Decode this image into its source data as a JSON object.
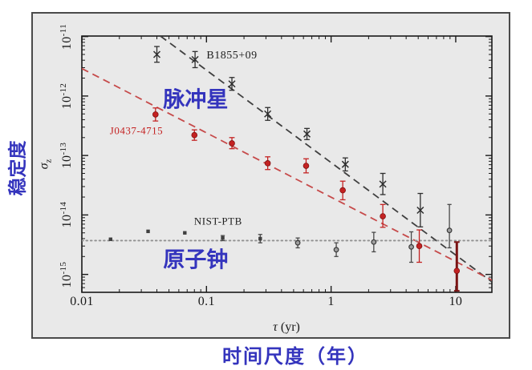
{
  "figure": {
    "outer_bg": "#ffffff",
    "panel_bg": "#e9e9e9",
    "panel_border": "#4a4a4a",
    "axis_color": "#1a1a1a",
    "blue_label_color": "#3434bd",
    "y_axis_title_cn": "稳定度",
    "x_axis_title_cn": "时间尺度（年）"
  },
  "chart_data": {
    "type": "scatter",
    "x_scale": "log",
    "y_scale": "log",
    "xlabel_sym": "τ",
    "xlabel_rest": " (yr)",
    "ylabel_sym": "σ",
    "ylabel_sub": "z",
    "xlim": [
      0.01,
      19.5
    ],
    "ylim": [
      5e-16,
      1.02e-11
    ],
    "grid": false,
    "legend": "none",
    "x_ticks": [
      {
        "label": "0.01",
        "v": 0.01
      },
      {
        "label": "0.1",
        "v": 0.1
      },
      {
        "label": "1",
        "v": 1
      },
      {
        "label": "10",
        "v": 10
      }
    ],
    "y_ticks": [
      {
        "base": "10",
        "exp": "-11",
        "v": 1e-11
      },
      {
        "base": "10",
        "exp": "-12",
        "v": 1e-12
      },
      {
        "base": "10",
        "exp": "-13",
        "v": 1e-13
      },
      {
        "base": "10",
        "exp": "-14",
        "v": 1e-14
      },
      {
        "base": "10",
        "exp": "-15",
        "v": 1e-15
      }
    ],
    "series": [
      {
        "id": "b1855",
        "name": "B1855+09",
        "kind": "pulsar",
        "color": "#2e2e2e",
        "line_color": "#3f3f3f",
        "line_style": "dashed",
        "marker": "x",
        "trend": [
          [
            0.0427,
            1.02e-11
          ],
          [
            19.5,
            7.5e-16
          ]
        ],
        "points": [
          {
            "t": 0.04,
            "s": 5e-12,
            "lo": 3.7e-12,
            "hi": 6.8e-12
          },
          {
            "t": 0.081,
            "s": 4.1e-12,
            "lo": 3e-12,
            "hi": 5.6e-12
          },
          {
            "t": 0.16,
            "s": 1.6e-12,
            "lo": 1.25e-12,
            "hi": 2.05e-12
          },
          {
            "t": 0.31,
            "s": 5e-13,
            "lo": 3.9e-13,
            "hi": 6.4e-13
          },
          {
            "t": 0.64,
            "s": 2.3e-13,
            "lo": 1.85e-13,
            "hi": 2.85e-13
          },
          {
            "t": 1.3,
            "s": 7.1e-14,
            "lo": 5.5e-14,
            "hi": 9.1e-14
          },
          {
            "t": 2.6,
            "s": 3.3e-14,
            "lo": 2.2e-14,
            "hi": 5e-14
          },
          {
            "t": 5.2,
            "s": 1.2e-14,
            "lo": 6.3e-15,
            "hi": 2.3e-14
          }
        ]
      },
      {
        "id": "j0437",
        "name": "J0437-4715",
        "kind": "pulsar",
        "color": "#c42222",
        "line_color": "#c64a4a",
        "line_style": "dashed",
        "marker": "circle",
        "trend": [
          [
            0.01,
            2.9e-12
          ],
          [
            19.5,
            8e-16
          ]
        ],
        "points": [
          {
            "t": 0.039,
            "s": 4.9e-13,
            "lo": 3.8e-13,
            "hi": 6.3e-13
          },
          {
            "t": 0.08,
            "s": 2.2e-13,
            "lo": 1.8e-13,
            "hi": 2.7e-13
          },
          {
            "t": 0.16,
            "s": 1.6e-13,
            "lo": 1.3e-13,
            "hi": 2e-13
          },
          {
            "t": 0.31,
            "s": 7.4e-14,
            "lo": 5.8e-14,
            "hi": 9.5e-14
          },
          {
            "t": 0.63,
            "s": 6.7e-14,
            "lo": 5.1e-14,
            "hi": 8.8e-14
          },
          {
            "t": 1.24,
            "s": 2.6e-14,
            "lo": 1.8e-14,
            "hi": 3.7e-14
          },
          {
            "t": 2.6,
            "s": 9.5e-15,
            "lo": 6.2e-15,
            "hi": 1.5e-14
          },
          {
            "t": 5.1,
            "s": 3e-15,
            "lo": 1.6e-15,
            "hi": 5.6e-15
          },
          {
            "t": 10.2,
            "s": 1.15e-15,
            "lo": 5.3e-16,
            "hi": 3.5e-15,
            "thick": true
          }
        ]
      },
      {
        "id": "nist",
        "name": "NIST-PTB",
        "kind": "atomic-clock",
        "color": "#4a4a4a",
        "line_color": "#909090",
        "line_style": "dotted",
        "marker": "dot",
        "trend": [
          [
            0.01,
            3.7e-15
          ],
          [
            19.5,
            3.7e-15
          ]
        ],
        "points": [
          {
            "t": 0.017,
            "s": 3.9e-15,
            "lo": 3.9e-15,
            "hi": 3.9e-15,
            "m": "s"
          },
          {
            "t": 0.034,
            "s": 5.3e-15,
            "lo": 5.3e-15,
            "hi": 5.3e-15,
            "m": "s"
          },
          {
            "t": 0.067,
            "s": 5e-15,
            "lo": 5e-15,
            "hi": 5e-15,
            "m": "s"
          },
          {
            "t": 0.135,
            "s": 4.1e-15,
            "lo": 3.7e-15,
            "hi": 4.5e-15,
            "m": "s"
          },
          {
            "t": 0.27,
            "s": 4e-15,
            "lo": 3.4e-15,
            "hi": 4.7e-15,
            "m": "s"
          },
          {
            "t": 0.54,
            "s": 3.4e-15,
            "lo": 2.8e-15,
            "hi": 4.1e-15,
            "m": "o"
          },
          {
            "t": 1.1,
            "s": 2.6e-15,
            "lo": 2e-15,
            "hi": 3.4e-15,
            "m": "o"
          },
          {
            "t": 2.2,
            "s": 3.5e-15,
            "lo": 2.4e-15,
            "hi": 5.1e-15,
            "m": "o"
          },
          {
            "t": 4.4,
            "s": 2.9e-15,
            "lo": 1.6e-15,
            "hi": 5.2e-15,
            "m": "o"
          },
          {
            "t": 8.9,
            "s": 5.5e-15,
            "lo": 2.8e-15,
            "hi": 1.5e-14,
            "m": "o"
          }
        ]
      }
    ],
    "annotations": [
      {
        "id": "b1855-label",
        "text": "B1855+09",
        "t": 0.16,
        "s": 4.7e-12,
        "color": "#1f1f1f",
        "size": 14,
        "bold": false,
        "font": "serif"
      },
      {
        "id": "j0437-label",
        "text": "J0437-4715",
        "t": 0.0274,
        "s": 2.6e-13,
        "color": "#c42222",
        "size": 13,
        "bold": false,
        "font": "serif"
      },
      {
        "id": "nist-label",
        "text": "NIST-PTB",
        "t": 0.124,
        "s": 7.9e-15,
        "color": "#1f1f1f",
        "size": 13,
        "bold": false,
        "font": "serif"
      },
      {
        "id": "pulsar-label",
        "text": "脉冲星",
        "t": 0.082,
        "s": 8.6e-13,
        "color": "#3434bd",
        "size": 27,
        "bold": true,
        "font": "sans"
      },
      {
        "id": "clock-label",
        "text": "原子钟",
        "t": 0.082,
        "s": 1.74e-15,
        "color": "#3434bd",
        "size": 27,
        "bold": true,
        "font": "sans"
      }
    ]
  }
}
